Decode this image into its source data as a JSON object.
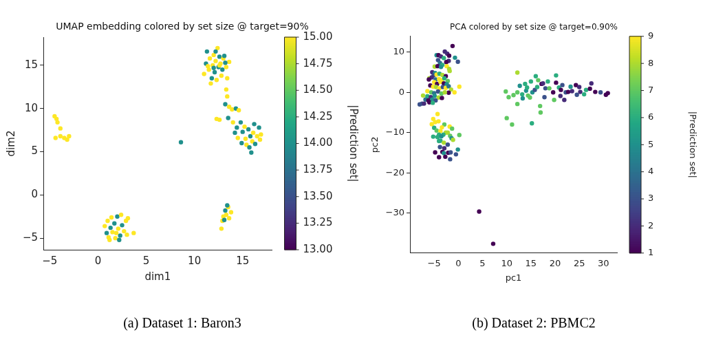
{
  "chart_data": [
    {
      "type": "scatter",
      "title": "UMAP embedding colored by set size @ target=90%",
      "xlabel": "dim1",
      "ylabel": "dim2",
      "clabel": "|Prediction set|",
      "marker": "circle",
      "xlim": [
        -5.66,
        18.05
      ],
      "xticks": [
        -5,
        0,
        5,
        10,
        15
      ],
      "ylim": [
        -6.34,
        18.26
      ],
      "yticks": [
        -5,
        0,
        5,
        10,
        15
      ],
      "clim": [
        13,
        15
      ],
      "cticks": [
        {
          "value": 13,
          "label": "13.00"
        },
        {
          "value": 13.25,
          "label": "13.25"
        },
        {
          "value": 13.5,
          "label": "13.50"
        },
        {
          "value": 13.75,
          "label": "13.75"
        },
        {
          "value": 14,
          "label": "14.00"
        },
        {
          "value": 14.25,
          "label": "14.25"
        },
        {
          "value": 14.5,
          "label": "14.50"
        },
        {
          "value": 14.75,
          "label": "14.75"
        },
        {
          "value": 15,
          "label": "15.00"
        }
      ],
      "x": [
        11.0,
        11.2,
        11.3,
        11.5,
        11.6,
        11.8,
        11.9,
        12.0,
        12.1,
        12.2,
        12.3,
        12.4,
        12.5,
        12.6,
        12.7,
        12.8,
        12.9,
        13.0,
        13.1,
        13.3,
        13.4,
        13.6,
        11.4,
        12.0,
        12.6,
        11.7,
        13.2,
        12.2,
        13.3,
        13.4,
        13.2,
        13.6,
        13.9,
        14.3,
        14.6,
        13.5,
        14.0,
        12.3,
        12.6,
        14.4,
        14.8,
        14.2,
        14.5,
        14.9,
        15.0,
        15.3,
        15.4,
        15.6,
        15.8,
        15.9,
        16.0,
        16.1,
        16.3,
        16.5,
        16.7,
        16.9,
        16.8,
        15.2,
        15.7,
        16.2,
        0.7,
        0.9,
        1.0,
        1.1,
        1.3,
        1.4,
        1.5,
        1.7,
        1.8,
        2.0,
        2.1,
        2.3,
        2.4,
        2.5,
        2.7,
        2.9,
        3.0,
        3.1,
        3.7,
        1.2,
        2.2,
        1.9,
        12.8,
        12.9,
        13.0,
        13.2,
        13.3,
        13.5,
        13.6,
        13.8,
        13.4,
        13.1,
        -4.5,
        -4.3,
        -4.2,
        -3.9,
        -4.4,
        -3.9,
        -3.5,
        -3.2,
        -3.0,
        8.6
      ],
      "values": [
        14.0,
        15.2,
        16.6,
        14.5,
        15.8,
        13.5,
        15.0,
        16.2,
        14.2,
        15.5,
        13.3,
        17.0,
        14.8,
        16.0,
        15.2,
        13.8,
        14.5,
        15.8,
        16.1,
        14.8,
        13.5,
        15.4,
        14.9,
        14.7,
        15.0,
        12.9,
        15.3,
        16.6,
        12.2,
        11.4,
        10.5,
        10.2,
        9.9,
        10.0,
        9.8,
        8.9,
        8.4,
        8.8,
        8.7,
        7.8,
        8.4,
        7.2,
        6.6,
        6.0,
        7.3,
        6.5,
        5.8,
        7.6,
        6.8,
        4.9,
        6.2,
        7.2,
        5.9,
        6.8,
        7.8,
        7.0,
        6.4,
        7.9,
        5.5,
        8.2,
        -3.6,
        -4.4,
        -3.0,
        -4.9,
        -3.8,
        -2.6,
        -4.3,
        -3.3,
        -5.0,
        -2.5,
        -3.9,
        -4.7,
        -2.3,
        -3.5,
        -4.2,
        -3.0,
        -4.6,
        -2.7,
        -4.4,
        -5.2,
        -5.2,
        -4.4,
        -3.9,
        -3.0,
        -2.5,
        -1.8,
        -2.3,
        -1.4,
        -2.7,
        -2.0,
        -1.2,
        -2.9,
        9.1,
        8.8,
        8.4,
        7.7,
        6.6,
        6.8,
        6.6,
        6.4,
        6.8,
        6.1
      ],
      "cvalues": [
        15,
        14,
        14,
        15,
        15,
        14,
        15,
        15,
        14,
        15,
        15,
        15,
        14,
        14,
        15,
        15,
        14,
        15,
        14,
        15,
        15,
        15,
        15,
        14,
        15,
        15,
        14,
        14,
        15,
        15,
        14,
        15,
        15,
        14,
        15,
        14,
        15,
        15,
        15,
        14,
        14,
        14,
        15,
        14,
        14,
        15,
        15,
        14,
        14,
        14,
        15,
        15,
        14,
        15,
        14,
        15,
        15,
        15,
        14,
        14,
        15,
        14,
        15,
        15,
        14,
        15,
        15,
        14,
        15,
        14,
        15,
        14,
        15,
        14,
        15,
        15,
        15,
        15,
        15,
        15,
        14,
        15,
        15,
        15,
        15,
        14,
        15,
        15,
        15,
        15,
        14,
        14,
        15,
        15,
        15,
        15,
        15,
        15,
        15,
        15,
        15,
        14
      ],
      "annotations": [
        "(a) Dataset 1: Baron3"
      ]
    },
    {
      "type": "scatter",
      "title": "PCA colored by set size @ target=0.90%",
      "xlabel": "pc1",
      "ylabel": "pc2",
      "clabel": "|Prediction set|",
      "marker": "circle",
      "xlim": [
        -10,
        32.8
      ],
      "xticks": [
        -5,
        0,
        5,
        10,
        15,
        20,
        25,
        30
      ],
      "ylim": [
        -39.9,
        13.9
      ],
      "yticks": [
        -30,
        -20,
        -10,
        0,
        10
      ],
      "clim": [
        1,
        9
      ],
      "cticks": [
        1,
        2,
        3,
        4,
        5,
        6,
        7,
        8,
        9
      ],
      "x": [
        -1.2,
        -2.8,
        -2.3,
        -1.9,
        -0.7,
        -0.1,
        -4.5,
        -4.1,
        -3.6,
        -3.0,
        -2.0,
        -2.5,
        -4.2,
        -3.8,
        -3.3,
        -4.9,
        -4.3,
        -3.6,
        -2.4,
        -1.9,
        -1.8,
        -5.4,
        -4.8,
        -5.1,
        -4.5,
        -3.9,
        -3.3,
        -2.6,
        -6.0,
        -5.5,
        -4.7,
        -4.0,
        -3.4,
        -2.9,
        -2.2,
        -6.1,
        -5.0,
        -4.4,
        -3.7,
        -3.0,
        -2.4,
        -5.8,
        -5.2,
        -4.6,
        -3.9,
        -3.2,
        -2.6,
        -2.0,
        -1.5,
        0.2,
        -0.8,
        -2.0,
        -6.4,
        -5.6,
        -5.0,
        -4.2,
        -3.5,
        -2.8,
        -7.3,
        -6.4,
        -5.7,
        -4.9,
        -4.1,
        -3.4,
        -6.8,
        -6.2,
        -5.4,
        -4.7,
        -6.0,
        -5.3,
        -7.5,
        -7.1,
        -8.0,
        -4.3,
        -5.2,
        -4.8,
        -5.5,
        -4.1,
        -2.9,
        -1.8,
        -1.3,
        -5.0,
        -3.4,
        -4.5,
        -3.7,
        -2.6,
        -3.1,
        -4.0,
        -2.2,
        -5.2,
        -4.3,
        -3.5,
        -1.7,
        0.2,
        -1.4,
        -1.1,
        -3.7,
        -4.0,
        -3.0,
        -2.2,
        -3.8,
        -2.9,
        -0.1,
        -4.8,
        -3.3,
        -3.0,
        -2.1,
        -1.6,
        -0.5,
        -4.0,
        -2.7,
        -1.7,
        4.3,
        7.2,
        9.8,
        10.4,
        11.4,
        12.2,
        12.2,
        12.7,
        13.2,
        13.3,
        13.8,
        14.0,
        14.2,
        14.4,
        14.8,
        15.0,
        15.3,
        15.8,
        16.0,
        16.3,
        16.5,
        16.9,
        17.0,
        17.2,
        17.5,
        18.0,
        17.8,
        18.5,
        18.8,
        19.6,
        19.8,
        20.2,
        20.2,
        20.8,
        21.2,
        21.1,
        21.5,
        21.9,
        22.2,
        22.7,
        23.2,
        23.5,
        24.3,
        24.5,
        25.0,
        25.2,
        26.0,
        26.4,
        27.5,
        27.2,
        28.3,
        29.4,
        30.5,
        30.9,
        10.0,
        11.1,
        15.2,
        12.2
      ],
      "values": [
        11.5,
        10.1,
        9.6,
        9.1,
        8.6,
        7.6,
        9.2,
        9.2,
        8.9,
        8.5,
        7.8,
        7.5,
        8.0,
        7.3,
        6.8,
        6.4,
        6.5,
        6.3,
        6.5,
        5.8,
        5.3,
        5.0,
        4.8,
        4.2,
        4.4,
        4.6,
        4.3,
        4.0,
        3.5,
        3.7,
        3.2,
        3.3,
        3.0,
        3.5,
        2.8,
        3.2,
        2.5,
        2.1,
        2.6,
        2.2,
        2.0,
        1.7,
        1.4,
        1.3,
        1.0,
        1.3,
        1.1,
        1.5,
        0.7,
        1.4,
        0.0,
        -0.1,
        0.3,
        0.0,
        -0.2,
        0.2,
        -0.3,
        0.0,
        -0.8,
        -1.0,
        -1.2,
        -0.9,
        -1.3,
        -1.4,
        -1.8,
        -2.0,
        -1.8,
        -2.0,
        -2.5,
        -2.6,
        -2.8,
        -2.8,
        -3.0,
        -5.4,
        -6.6,
        -7.4,
        -7.9,
        -7.2,
        -8.0,
        -8.5,
        -9.0,
        -8.8,
        -8.7,
        -9.5,
        -9.6,
        -10.0,
        -10.5,
        -10.5,
        -10.0,
        -11.0,
        -11.1,
        -10.9,
        -10.8,
        -10.6,
        -11.4,
        -11.8,
        -12.0,
        -12.1,
        -12.5,
        -13.0,
        -13.6,
        -13.9,
        -14.2,
        -14.9,
        -14.8,
        -15.1,
        -15.0,
        -14.9,
        -15.4,
        -16.1,
        -16.0,
        -16.6,
        -29.6,
        -37.6,
        0.2,
        -1.2,
        -0.7,
        0.0,
        4.9,
        1.6,
        -0.5,
        -1.5,
        2.1,
        0.4,
        1.2,
        -0.8,
        -1.3,
        2.7,
        0.0,
        0.6,
        4.0,
        1.3,
        3.0,
        -3.4,
        -5.0,
        2.1,
        2.2,
        1.0,
        -1.2,
        2.7,
        1.0,
        0.0,
        -1.9,
        4.2,
        2.4,
        1.2,
        0.6,
        -0.9,
        1.8,
        -1.9,
        0.0,
        0.1,
        1.4,
        0.3,
        1.8,
        -0.6,
        1.3,
        0.1,
        -0.5,
        0.6,
        2.2,
        0.9,
        0.1,
        0.0,
        -0.6,
        -0.2,
        -6.4,
        -8.0,
        -7.7,
        -2.9
      ],
      "cvalues": [
        1,
        2,
        2,
        1,
        5,
        3,
        5,
        1,
        2,
        6,
        2,
        1,
        3,
        4,
        6,
        8,
        1,
        5,
        9,
        8,
        8,
        2,
        5,
        3,
        9,
        6,
        8,
        1,
        8,
        2,
        4,
        9,
        9,
        6,
        7,
        1,
        9,
        1,
        9,
        1,
        5,
        1,
        9,
        8,
        9,
        3,
        9,
        4,
        8,
        9,
        9,
        1,
        9,
        7,
        4,
        3,
        7,
        8,
        8,
        6,
        2,
        5,
        8,
        1,
        4,
        1,
        5,
        3,
        1,
        6,
        3,
        2,
        3,
        9,
        9,
        9,
        9,
        9,
        7,
        9,
        7,
        6,
        9,
        7,
        9,
        8,
        6,
        6,
        8,
        6,
        6,
        5,
        7,
        7,
        5,
        8,
        6,
        6,
        8,
        3,
        3,
        2,
        5,
        1,
        1,
        5,
        1,
        3,
        3,
        1,
        1,
        3,
        1,
        1,
        7,
        7,
        7,
        7,
        8,
        5,
        6,
        5,
        6,
        5,
        6,
        7,
        7,
        6,
        5,
        3,
        6,
        6,
        7,
        7,
        7,
        1,
        2,
        3,
        3,
        6,
        7,
        1,
        7,
        6,
        1,
        6,
        1,
        2,
        3,
        2,
        3,
        1,
        5,
        2,
        1,
        3,
        2,
        2,
        6,
        6,
        2,
        1,
        1,
        3,
        1,
        1,
        7,
        7,
        6,
        7
      ],
      "annotations": [
        "(b) Dataset 2: PBMC2"
      ]
    }
  ]
}
